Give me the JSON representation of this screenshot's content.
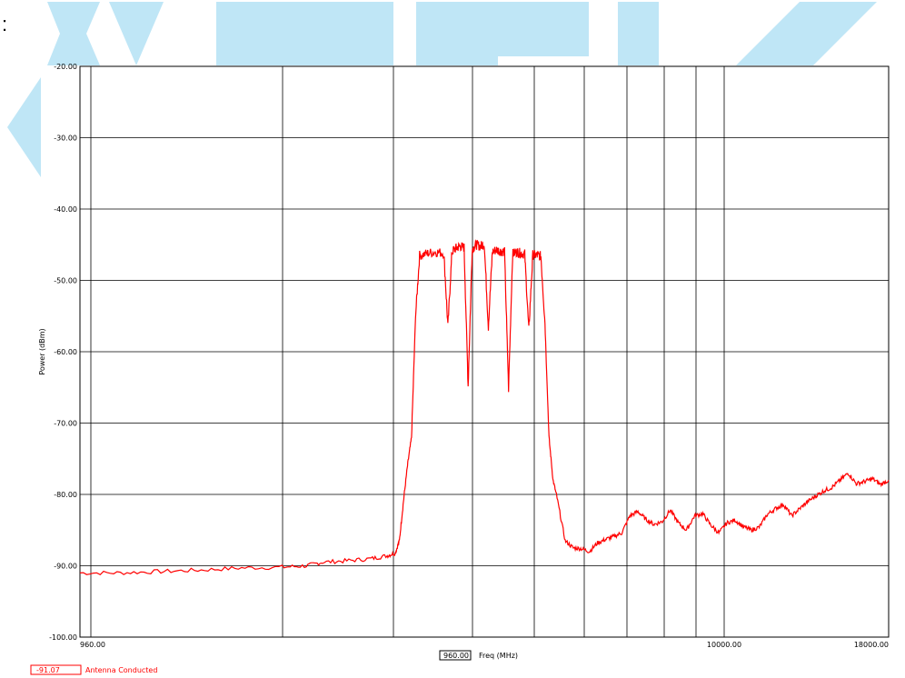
{
  "header": {
    "prefix_mark": ":"
  },
  "watermark": {
    "color": "#bfe6f6"
  },
  "chart_data": {
    "type": "line",
    "title": "",
    "xlabel": "Freq (MHz)",
    "ylabel": "Power (dBm)",
    "ylim": [
      -100,
      -20
    ],
    "yticks": [
      "-20.00",
      "-30.00",
      "-40.00",
      "-50.00",
      "-60.00",
      "-70.00",
      "-80.00",
      "-90.00",
      "-100.00"
    ],
    "xtick_labels": [
      "960.00",
      "10000.00",
      "18000.00"
    ],
    "center_readout": "960.00",
    "grid": true,
    "trace_color": "#ff0000",
    "series": [
      {
        "name": "Antenna Conducted",
        "marker_value": "-91.07",
        "x_position_fraction": [
          0.0,
          0.05,
          0.1,
          0.15,
          0.2,
          0.25,
          0.28,
          0.3,
          0.33,
          0.36,
          0.38,
          0.39,
          0.395,
          0.4,
          0.405,
          0.41,
          0.415,
          0.42,
          0.43,
          0.44,
          0.45,
          0.455,
          0.46,
          0.465,
          0.47,
          0.475,
          0.48,
          0.485,
          0.49,
          0.495,
          0.5,
          0.505,
          0.51,
          0.515,
          0.52,
          0.525,
          0.53,
          0.535,
          0.54,
          0.545,
          0.55,
          0.555,
          0.56,
          0.565,
          0.57,
          0.575,
          0.58,
          0.585,
          0.59,
          0.6,
          0.61,
          0.62,
          0.63,
          0.64,
          0.65,
          0.66,
          0.67,
          0.68,
          0.69,
          0.7,
          0.71,
          0.72,
          0.73,
          0.74,
          0.75,
          0.76,
          0.77,
          0.78,
          0.79,
          0.8,
          0.81,
          0.82,
          0.83,
          0.84,
          0.85,
          0.86,
          0.87,
          0.88,
          0.89,
          0.9,
          0.91,
          0.92,
          0.93,
          0.94,
          0.95,
          0.96,
          0.97,
          0.98,
          0.99,
          1.0
        ],
        "power_dbm": [
          -91.0,
          -91.0,
          -90.8,
          -90.6,
          -90.3,
          -90.2,
          -90.0,
          -89.5,
          -89.3,
          -89.0,
          -88.6,
          -88.2,
          -86.5,
          -81.0,
          -76.0,
          -72.0,
          -55.0,
          -46.5,
          -46.2,
          -46.0,
          -46.2,
          -56.5,
          -46.0,
          -45.5,
          -45.2,
          -45.4,
          -64.8,
          -45.6,
          -45.0,
          -45.2,
          -44.9,
          -56.5,
          -46.0,
          -45.7,
          -45.9,
          -46.0,
          -65.2,
          -46.3,
          -46.0,
          -46.2,
          -46.3,
          -57.0,
          -46.4,
          -46.5,
          -46.6,
          -56.0,
          -72.0,
          -78.0,
          -80.5,
          -86.5,
          -87.5,
          -87.6,
          -88.0,
          -86.8,
          -86.3,
          -85.9,
          -85.4,
          -83.0,
          -82.4,
          -83.5,
          -84.2,
          -83.8,
          -82.2,
          -84.0,
          -85.0,
          -83.0,
          -82.7,
          -84.3,
          -85.4,
          -84.0,
          -83.6,
          -84.5,
          -85.0,
          -84.6,
          -82.8,
          -82.0,
          -81.4,
          -83.0,
          -82.0,
          -81.0,
          -80.2,
          -79.5,
          -79.0,
          -78.0,
          -77.0,
          -78.5,
          -78.2,
          -77.8,
          -78.6,
          -78.0
        ]
      }
    ]
  }
}
